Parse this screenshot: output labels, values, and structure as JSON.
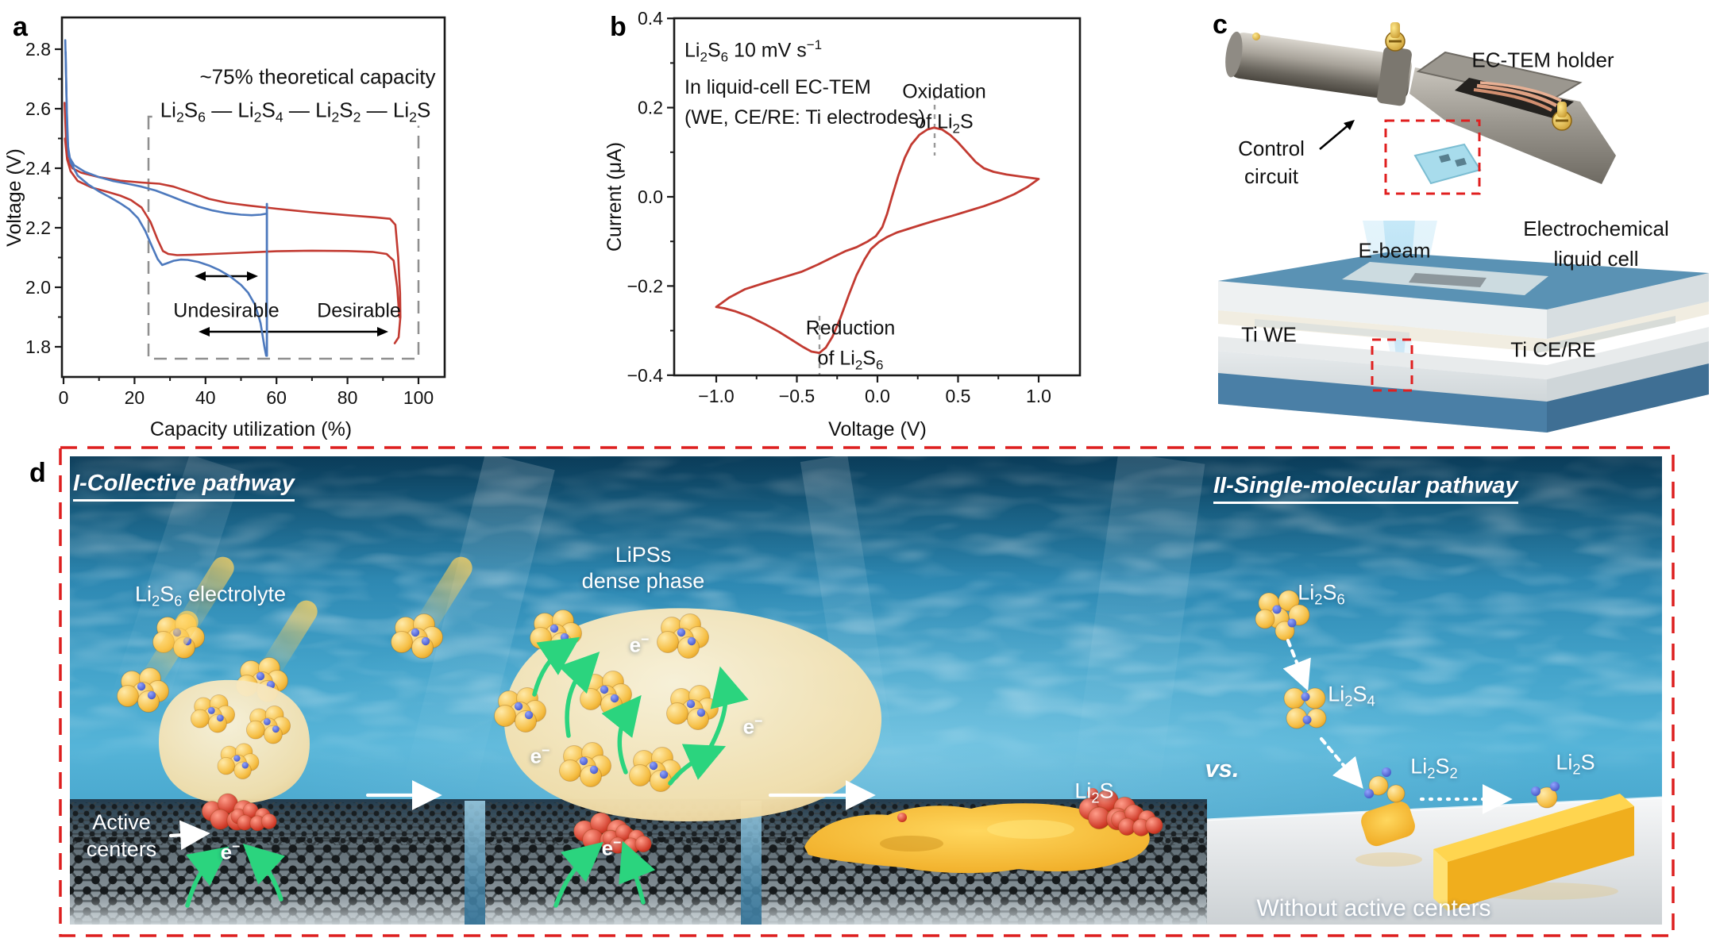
{
  "panel_a": {
    "letter": "a",
    "title": "~75% theoretical capacity",
    "formula": "Li_{2}S_{6} — Li_{2}S_{4} — Li_{2}S_{2} — Li_{2}S",
    "xlabel": "Capacity utilization (%)",
    "ylabel": "Voltage (V)",
    "undesirable": "Undesirable",
    "desirable": "Desirable"
  },
  "panel_b": {
    "letter": "b",
    "info_line1": "Li_{2}S_{6} 10 mV s^{−1}",
    "info_line2": "In liquid-cell EC-TEM",
    "info_line3": "(WE, CE/RE: Ti electrodes)",
    "oxidation_line1": "Oxidation",
    "oxidation_line2": "of Li_{2}S",
    "reduction_line1": "Reduction",
    "reduction_line2": "of Li_{2}S_{6}",
    "xlabel": "Voltage (V)",
    "ylabel": "Current (μA)"
  },
  "panel_c": {
    "letter": "c",
    "holder": "EC-TEM holder",
    "control_line1": "Control",
    "control_line2": "circuit",
    "ebeam": "E-beam",
    "cell_line1": "Electrochemical",
    "cell_line2": "liquid cell",
    "ti_we": "Ti WE",
    "ti_cere": "Ti CE/RE"
  },
  "panel_d": {
    "letter": "d",
    "title_left": "I-Collective pathway",
    "title_right": "II-Single-molecular pathway",
    "electrolyte": "Li_{2}S_{6} electrolyte",
    "lipss_line1": "LiPSs",
    "lipss_line2": "dense phase",
    "active_line1": "Active",
    "active_line2": "centers",
    "electron": "e^{−}",
    "li2s_deposit": "Li_{2}S",
    "vs": "vs.",
    "step_li2s6": "Li_{2}S_{6}",
    "step_li2s4": "Li_{2}S_{4}",
    "step_li2s2": "Li_{2}S_{2}",
    "step_li2s": "Li_{2}S",
    "without": "Without active centers"
  },
  "chart_data": [
    {
      "id": "a",
      "type": "line",
      "title": "~75% theoretical capacity",
      "xlabel": "Capacity utilization (%)",
      "ylabel": "Voltage (V)",
      "xlim": [
        0,
        100
      ],
      "ylim": [
        1.7,
        2.9
      ],
      "grid": false,
      "xticks": {
        "values": [
          0,
          20,
          40,
          60,
          80,
          100
        ],
        "labels": [
          "0",
          "20",
          "40",
          "60",
          "80",
          "100"
        ],
        "minor": [
          10,
          30,
          50,
          70,
          90
        ]
      },
      "yticks": {
        "values": [
          2.8,
          2.6,
          2.4,
          2.2,
          2.0,
          1.8
        ],
        "labels": [
          "2.8",
          "2.6",
          "2.4",
          "2.2",
          "2.0",
          "1.8"
        ],
        "minor": [
          2.7,
          2.5,
          2.3,
          2.1,
          1.9
        ]
      },
      "annotations": [
        "Li2S6 — Li2S4 — Li2S2 — Li2S",
        "Undesirable (≈37–55%)",
        "Desirable (≈37–90%)"
      ],
      "series": [
        {
          "name": "with-active-centers-upper",
          "color": "#c23a31",
          "width": 2.6,
          "points": [
            [
              0.3,
              2.62
            ],
            [
              0.7,
              2.5
            ],
            [
              1.2,
              2.43
            ],
            [
              2.5,
              2.4
            ],
            [
              5,
              2.385
            ],
            [
              10,
              2.37
            ],
            [
              16,
              2.358
            ],
            [
              22,
              2.352
            ],
            [
              27,
              2.348
            ],
            [
              31,
              2.338
            ],
            [
              36,
              2.318
            ],
            [
              41,
              2.297
            ],
            [
              46,
              2.284
            ],
            [
              52,
              2.275
            ],
            [
              60,
              2.264
            ],
            [
              70,
              2.252
            ],
            [
              80,
              2.242
            ],
            [
              88,
              2.235
            ],
            [
              92,
              2.23
            ],
            [
              93.5,
              2.21
            ],
            [
              94.3,
              2.1
            ],
            [
              94.8,
              1.98
            ],
            [
              94.9,
              1.9
            ],
            [
              94.4,
              1.832
            ],
            [
              93.3,
              1.812
            ]
          ]
        },
        {
          "name": "with-active-centers-lower",
          "color": "#c23a31",
          "width": 2.6,
          "points": [
            [
              0.4,
              2.5
            ],
            [
              1,
              2.43
            ],
            [
              2,
              2.39
            ],
            [
              4,
              2.357
            ],
            [
              8,
              2.335
            ],
            [
              12,
              2.322
            ],
            [
              16,
              2.308
            ],
            [
              19,
              2.293
            ],
            [
              22,
              2.268
            ],
            [
              24.5,
              2.22
            ],
            [
              26.5,
              2.16
            ],
            [
              28,
              2.122
            ],
            [
              29.5,
              2.112
            ],
            [
              32,
              2.108
            ],
            [
              36,
              2.109
            ],
            [
              42,
              2.112
            ],
            [
              50,
              2.116
            ],
            [
              60,
              2.121
            ],
            [
              70,
              2.123
            ],
            [
              80,
              2.122
            ],
            [
              87,
              2.119
            ],
            [
              91,
              2.112
            ],
            [
              93,
              2.09
            ],
            [
              94,
              2.0
            ],
            [
              94.6,
              1.9
            ]
          ]
        },
        {
          "name": "without-active-centers-upper",
          "color": "#4d79bd",
          "width": 2.6,
          "points": [
            [
              0.5,
              2.83
            ],
            [
              0.8,
              2.66
            ],
            [
              1.1,
              2.5
            ],
            [
              1.5,
              2.44
            ],
            [
              3,
              2.41
            ],
            [
              6,
              2.388
            ],
            [
              10,
              2.37
            ],
            [
              14,
              2.357
            ],
            [
              18,
              2.348
            ],
            [
              22,
              2.338
            ],
            [
              26,
              2.325
            ],
            [
              30,
              2.307
            ],
            [
              34,
              2.288
            ],
            [
              38,
              2.271
            ],
            [
              42,
              2.258
            ],
            [
              46,
              2.249
            ],
            [
              50,
              2.244
            ],
            [
              53,
              2.242
            ],
            [
              55.5,
              2.244
            ],
            [
              57,
              2.247
            ]
          ]
        },
        {
          "name": "without-active-centers-lower",
          "color": "#4d79bd",
          "width": 2.6,
          "points": [
            [
              0.6,
              2.79
            ],
            [
              0.9,
              2.6
            ],
            [
              1.3,
              2.47
            ],
            [
              2,
              2.42
            ],
            [
              4,
              2.375
            ],
            [
              7,
              2.345
            ],
            [
              10,
              2.322
            ],
            [
              13,
              2.303
            ],
            [
              16,
              2.282
            ],
            [
              18.5,
              2.262
            ],
            [
              21,
              2.232
            ],
            [
              23,
              2.19
            ],
            [
              25,
              2.135
            ],
            [
              26.5,
              2.095
            ],
            [
              27.8,
              2.075
            ],
            [
              29,
              2.08
            ],
            [
              31,
              2.089
            ],
            [
              33,
              2.093
            ],
            [
              35,
              2.092
            ],
            [
              38,
              2.085
            ],
            [
              41,
              2.073
            ],
            [
              44,
              2.057
            ],
            [
              47,
              2.036
            ],
            [
              50,
              2.008
            ],
            [
              52,
              1.982
            ],
            [
              54,
              1.94
            ],
            [
              55.5,
              1.88
            ],
            [
              56.6,
              1.8
            ],
            [
              57.1,
              1.77
            ]
          ]
        },
        {
          "name": "without-active-centers-cutoff",
          "color": "#4d79bd",
          "width": 2.8,
          "points": [
            [
              57.3,
              2.28
            ],
            [
              57.3,
              1.77
            ]
          ]
        }
      ]
    },
    {
      "id": "b",
      "type": "line",
      "title": "Cyclic voltammogram, Li2S6, 10 mV/s, liquid-cell EC-TEM",
      "xlabel": "Voltage (V)",
      "ylabel": "Current (μA)",
      "xlim": [
        -1.2,
        1.2
      ],
      "ylim": [
        -0.4,
        0.4
      ],
      "grid": false,
      "xticks": {
        "values": [
          -1.0,
          -0.5,
          0.0,
          0.5,
          1.0
        ],
        "labels": [
          "−1.0",
          "−0.5",
          "0.0",
          "0.5",
          "1.0"
        ],
        "minor": [
          -0.75,
          -0.25,
          0.25,
          0.75
        ]
      },
      "yticks": {
        "values": [
          0.4,
          0.2,
          0.0,
          -0.2,
          -0.4
        ],
        "labels": [
          "0.4",
          "0.2",
          "0.0",
          "−0.2",
          "−0.4"
        ],
        "minor": [
          0.3,
          0.1,
          -0.1,
          -0.3
        ]
      },
      "annotations": [
        "Oxidation of Li2S (peak ≈ +0.35 V, +0.155 µA)",
        "Reduction of Li2S6 (peak ≈ −0.36 V, −0.35 µA)"
      ],
      "peaks": {
        "oxidation_V": 0.35,
        "reduction_V": -0.36
      },
      "series": [
        {
          "name": "CV-Li2S6",
          "color": "#c23a31",
          "width": 2.8,
          "points": [
            [
              -1.0,
              -0.247
            ],
            [
              -0.92,
              -0.226
            ],
            [
              -0.82,
              -0.207
            ],
            [
              -0.7,
              -0.193
            ],
            [
              -0.58,
              -0.18
            ],
            [
              -0.47,
              -0.168
            ],
            [
              -0.37,
              -0.152
            ],
            [
              -0.28,
              -0.136
            ],
            [
              -0.2,
              -0.122
            ],
            [
              -0.13,
              -0.113
            ],
            [
              -0.06,
              -0.1
            ],
            [
              -0.01,
              -0.088
            ],
            [
              0.03,
              -0.068
            ],
            [
              0.06,
              -0.038
            ],
            [
              0.09,
              0.0
            ],
            [
              0.13,
              0.048
            ],
            [
              0.17,
              0.088
            ],
            [
              0.21,
              0.117
            ],
            [
              0.26,
              0.139
            ],
            [
              0.31,
              0.151
            ],
            [
              0.35,
              0.155
            ],
            [
              0.4,
              0.151
            ],
            [
              0.45,
              0.139
            ],
            [
              0.5,
              0.122
            ],
            [
              0.56,
              0.098
            ],
            [
              0.61,
              0.078
            ],
            [
              0.66,
              0.064
            ],
            [
              0.72,
              0.056
            ],
            [
              0.8,
              0.05
            ],
            [
              0.9,
              0.045
            ],
            [
              1.0,
              0.04
            ],
            [
              0.93,
              0.022
            ],
            [
              0.85,
              0.006
            ],
            [
              0.76,
              -0.008
            ],
            [
              0.66,
              -0.021
            ],
            [
              0.56,
              -0.032
            ],
            [
              0.46,
              -0.043
            ],
            [
              0.36,
              -0.053
            ],
            [
              0.27,
              -0.063
            ],
            [
              0.19,
              -0.072
            ],
            [
              0.12,
              -0.08
            ],
            [
              0.06,
              -0.09
            ],
            [
              0.01,
              -0.101
            ],
            [
              -0.04,
              -0.117
            ],
            [
              -0.08,
              -0.14
            ],
            [
              -0.13,
              -0.176
            ],
            [
              -0.18,
              -0.222
            ],
            [
              -0.23,
              -0.272
            ],
            [
              -0.28,
              -0.314
            ],
            [
              -0.32,
              -0.338
            ],
            [
              -0.36,
              -0.35
            ],
            [
              -0.41,
              -0.347
            ],
            [
              -0.46,
              -0.337
            ],
            [
              -0.53,
              -0.321
            ],
            [
              -0.61,
              -0.303
            ],
            [
              -0.7,
              -0.285
            ],
            [
              -0.79,
              -0.269
            ],
            [
              -0.88,
              -0.257
            ],
            [
              -0.95,
              -0.25
            ],
            [
              -1.0,
              -0.247
            ]
          ]
        }
      ]
    }
  ]
}
